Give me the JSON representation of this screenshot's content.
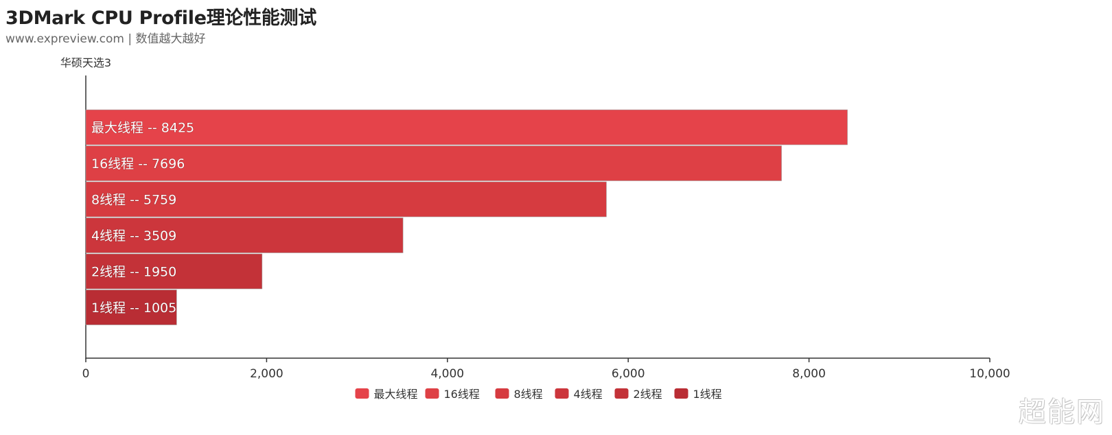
{
  "header": {
    "title": "3DMark CPU Profile理论性能测试",
    "subtitle": "www.expreview.com | 数值越大越好"
  },
  "watermark": "超能网",
  "chart_data": {
    "type": "bar",
    "orientation": "horizontal",
    "axis_category_label": "华硕天选3",
    "label_separator": " -- ",
    "series": [
      {
        "name": "最大线程",
        "value": 8425,
        "color": "#e5434a"
      },
      {
        "name": "16线程",
        "value": 7696,
        "color": "#de4045"
      },
      {
        "name": "8线程",
        "value": 5759,
        "color": "#d63b40"
      },
      {
        "name": "4线程",
        "value": 3509,
        "color": "#cc363c"
      },
      {
        "name": "2线程",
        "value": 1950,
        "color": "#c33238"
      },
      {
        "name": "1线程",
        "value": 1005,
        "color": "#b92d34"
      }
    ],
    "xlim": [
      0,
      10000
    ],
    "xticks": [
      0,
      2000,
      4000,
      6000,
      8000,
      10000
    ],
    "xtick_labels": [
      "0",
      "2,000",
      "4,000",
      "6,000",
      "8,000",
      "10,000"
    ],
    "grid": false,
    "legend": "bottom-center"
  }
}
